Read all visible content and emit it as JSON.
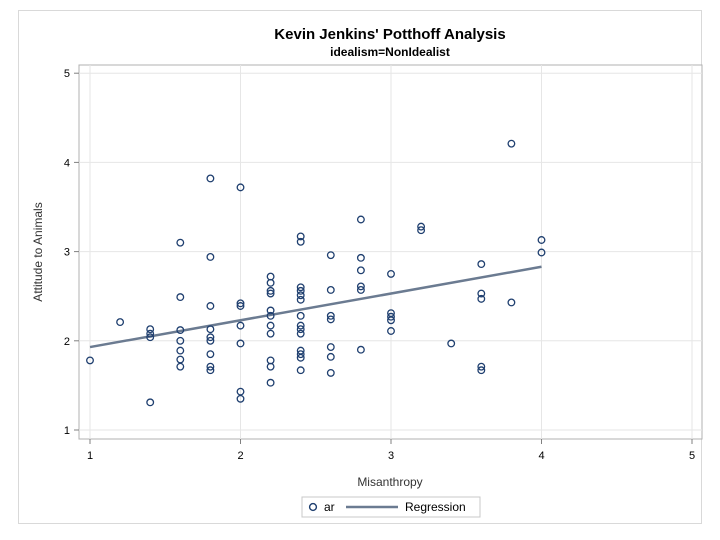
{
  "chart_data": {
    "type": "scatter",
    "title": "Kevin Jenkins' Potthoff Analysis",
    "subtitle": "idealism=NonIdealist",
    "xlabel": "Misanthropy",
    "ylabel": "Attitude to Animals",
    "xlim": [
      1,
      5
    ],
    "ylim": [
      1,
      5
    ],
    "xticks": [
      "1",
      "2",
      "3",
      "4",
      "5"
    ],
    "yticks": [
      "1",
      "2",
      "3",
      "4",
      "5"
    ],
    "grid": true,
    "legend_position": "bottom",
    "series": [
      {
        "name": "ar",
        "kind": "scatter",
        "color": "#1f3f6f",
        "points": [
          [
            1.0,
            1.78
          ],
          [
            1.2,
            2.21
          ],
          [
            1.4,
            2.13
          ],
          [
            1.4,
            2.08
          ],
          [
            1.4,
            2.04
          ],
          [
            1.4,
            1.31
          ],
          [
            1.6,
            3.1
          ],
          [
            1.6,
            2.49
          ],
          [
            1.6,
            2.12
          ],
          [
            1.6,
            2.0
          ],
          [
            1.6,
            1.89
          ],
          [
            1.6,
            1.79
          ],
          [
            1.6,
            1.71
          ],
          [
            1.8,
            3.82
          ],
          [
            1.8,
            2.94
          ],
          [
            1.8,
            2.39
          ],
          [
            1.8,
            2.13
          ],
          [
            1.8,
            2.04
          ],
          [
            1.8,
            2.0
          ],
          [
            1.8,
            1.85
          ],
          [
            1.8,
            1.71
          ],
          [
            1.8,
            1.67
          ],
          [
            2.0,
            3.72
          ],
          [
            2.0,
            2.42
          ],
          [
            2.0,
            2.39
          ],
          [
            2.0,
            2.17
          ],
          [
            2.0,
            1.97
          ],
          [
            2.0,
            1.43
          ],
          [
            2.0,
            1.35
          ],
          [
            2.2,
            2.72
          ],
          [
            2.2,
            2.65
          ],
          [
            2.2,
            2.56
          ],
          [
            2.2,
            2.53
          ],
          [
            2.2,
            2.34
          ],
          [
            2.2,
            2.28
          ],
          [
            2.2,
            2.17
          ],
          [
            2.2,
            2.08
          ],
          [
            2.2,
            1.78
          ],
          [
            2.2,
            1.71
          ],
          [
            2.2,
            1.53
          ],
          [
            2.4,
            3.17
          ],
          [
            2.4,
            3.11
          ],
          [
            2.4,
            2.6
          ],
          [
            2.4,
            2.56
          ],
          [
            2.4,
            2.51
          ],
          [
            2.4,
            2.46
          ],
          [
            2.4,
            2.28
          ],
          [
            2.4,
            2.17
          ],
          [
            2.4,
            2.13
          ],
          [
            2.4,
            2.08
          ],
          [
            2.4,
            1.89
          ],
          [
            2.4,
            1.85
          ],
          [
            2.4,
            1.81
          ],
          [
            2.4,
            1.67
          ],
          [
            2.6,
            2.96
          ],
          [
            2.6,
            2.57
          ],
          [
            2.6,
            2.28
          ],
          [
            2.6,
            2.24
          ],
          [
            2.6,
            1.93
          ],
          [
            2.6,
            1.82
          ],
          [
            2.6,
            1.64
          ],
          [
            2.8,
            3.36
          ],
          [
            2.8,
            2.93
          ],
          [
            2.8,
            2.79
          ],
          [
            2.8,
            2.61
          ],
          [
            2.8,
            2.57
          ],
          [
            2.8,
            1.9
          ],
          [
            3.0,
            2.75
          ],
          [
            3.0,
            2.31
          ],
          [
            3.0,
            2.27
          ],
          [
            3.0,
            2.23
          ],
          [
            3.0,
            2.11
          ],
          [
            3.2,
            3.28
          ],
          [
            3.2,
            3.24
          ],
          [
            3.4,
            1.97
          ],
          [
            3.6,
            2.86
          ],
          [
            3.6,
            2.53
          ],
          [
            3.6,
            2.47
          ],
          [
            3.6,
            1.71
          ],
          [
            3.6,
            1.67
          ],
          [
            3.8,
            4.21
          ],
          [
            3.8,
            2.43
          ],
          [
            4.0,
            3.13
          ],
          [
            4.0,
            2.99
          ]
        ]
      },
      {
        "name": "Regression",
        "kind": "line",
        "color": "#6b7b91",
        "points": [
          [
            1.0,
            1.93
          ],
          [
            4.0,
            2.83
          ]
        ]
      }
    ]
  }
}
